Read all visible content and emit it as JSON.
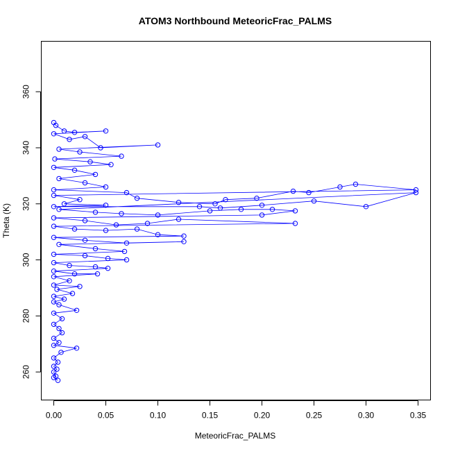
{
  "chart_data": {
    "type": "line",
    "title": "ATOM3 Northbound MeteoricFrac_PALMS",
    "xlabel": "MeteoricFrac_PALMS",
    "ylabel": "Theta (K)",
    "xlim": [
      -0.012,
      0.362
    ],
    "ylim": [
      250,
      378
    ],
    "x_ticks": [
      0.0,
      0.05,
      0.1,
      0.15,
      0.2,
      0.25,
      0.3,
      0.35
    ],
    "x_tick_labels": [
      "0.00",
      "0.05",
      "0.10",
      "0.15",
      "0.20",
      "0.25",
      "0.30",
      "0.35"
    ],
    "y_ticks": [
      260,
      280,
      300,
      320,
      340,
      360
    ],
    "y_tick_labels": [
      "260",
      "280",
      "300",
      "320",
      "340",
      "360"
    ],
    "grid": false,
    "legend": "none",
    "series_color": "#0000ff",
    "series_style": "line with open circle markers",
    "series": [
      {
        "points": [
          [
            0.0,
            349.0
          ],
          [
            0.002,
            348.0
          ],
          [
            0.01,
            346.0
          ],
          [
            0.02,
            345.5
          ],
          [
            0.05,
            346.0
          ],
          [
            0.0,
            345.0
          ],
          [
            0.015,
            343.0
          ],
          [
            0.03,
            344.0
          ],
          [
            0.045,
            340.0
          ],
          [
            0.1,
            341.0
          ],
          [
            0.005,
            339.5
          ],
          [
            0.025,
            338.5
          ],
          [
            0.065,
            337.0
          ],
          [
            0.001,
            336.0
          ],
          [
            0.035,
            335.0
          ],
          [
            0.055,
            334.0
          ],
          [
            0.0,
            333.0
          ],
          [
            0.02,
            332.0
          ],
          [
            0.04,
            330.5
          ],
          [
            0.005,
            329.0
          ],
          [
            0.03,
            327.5
          ],
          [
            0.05,
            326.0
          ],
          [
            0.0,
            325.0
          ],
          [
            0.07,
            324.0
          ],
          [
            0.08,
            322.0
          ],
          [
            0.12,
            320.5
          ],
          [
            0.155,
            320.0
          ],
          [
            0.165,
            321.5
          ],
          [
            0.195,
            322.0
          ],
          [
            0.23,
            324.5
          ],
          [
            0.245,
            324.0
          ],
          [
            0.275,
            326.0
          ],
          [
            0.29,
            327.0
          ],
          [
            0.348,
            325.0
          ],
          [
            0.0,
            323.0
          ],
          [
            0.025,
            321.5
          ],
          [
            0.01,
            320.0
          ],
          [
            0.05,
            319.5
          ],
          [
            0.0,
            319.0
          ],
          [
            0.14,
            319.0
          ],
          [
            0.16,
            318.5
          ],
          [
            0.2,
            319.5
          ],
          [
            0.25,
            321.0
          ],
          [
            0.3,
            319.0
          ],
          [
            0.348,
            324.0
          ],
          [
            0.005,
            318.0
          ],
          [
            0.04,
            317.0
          ],
          [
            0.065,
            316.5
          ],
          [
            0.1,
            316.0
          ],
          [
            0.15,
            317.5
          ],
          [
            0.18,
            318.0
          ],
          [
            0.21,
            318.0
          ],
          [
            0.232,
            317.5
          ],
          [
            0.2,
            316.0
          ],
          [
            0.0,
            315.0
          ],
          [
            0.03,
            314.0
          ],
          [
            0.06,
            312.5
          ],
          [
            0.09,
            313.0
          ],
          [
            0.12,
            314.5
          ],
          [
            0.232,
            313.0
          ],
          [
            0.0,
            312.0
          ],
          [
            0.02,
            311.0
          ],
          [
            0.05,
            310.5
          ],
          [
            0.08,
            311.0
          ],
          [
            0.1,
            309.0
          ],
          [
            0.125,
            308.5
          ],
          [
            0.0,
            308.0
          ],
          [
            0.03,
            307.0
          ],
          [
            0.07,
            306.0
          ],
          [
            0.125,
            306.5
          ],
          [
            0.005,
            305.5
          ],
          [
            0.04,
            304.0
          ],
          [
            0.068,
            303.0
          ],
          [
            0.0,
            302.0
          ],
          [
            0.03,
            301.5
          ],
          [
            0.052,
            300.5
          ],
          [
            0.07,
            300.0
          ],
          [
            0.0,
            299.0
          ],
          [
            0.015,
            298.0
          ],
          [
            0.04,
            297.5
          ],
          [
            0.052,
            297.0
          ],
          [
            0.0,
            296.0
          ],
          [
            0.02,
            295.0
          ],
          [
            0.042,
            295.0
          ],
          [
            0.0,
            294.0
          ],
          [
            0.015,
            292.5
          ],
          [
            0.0,
            291.0
          ],
          [
            0.025,
            290.5
          ],
          [
            0.003,
            289.5
          ],
          [
            0.018,
            288.0
          ],
          [
            0.0,
            287.0
          ],
          [
            0.01,
            286.0
          ],
          [
            0.0,
            285.0
          ],
          [
            0.005,
            284.0
          ],
          [
            0.022,
            282.0
          ],
          [
            0.0,
            281.0
          ],
          [
            0.008,
            279.0
          ],
          [
            0.0,
            277.0
          ],
          [
            0.005,
            275.5
          ],
          [
            0.008,
            274.0
          ],
          [
            0.0,
            272.0
          ],
          [
            0.005,
            270.5
          ],
          [
            0.0,
            269.5
          ],
          [
            0.022,
            268.5
          ],
          [
            0.007,
            267.0
          ],
          [
            0.0,
            265.0
          ],
          [
            0.004,
            263.5
          ],
          [
            0.0,
            262.0
          ],
          [
            0.003,
            261.0
          ],
          [
            0.0,
            260.0
          ],
          [
            0.002,
            258.5
          ],
          [
            0.0,
            258.0
          ],
          [
            0.004,
            257.0
          ]
        ]
      }
    ]
  }
}
